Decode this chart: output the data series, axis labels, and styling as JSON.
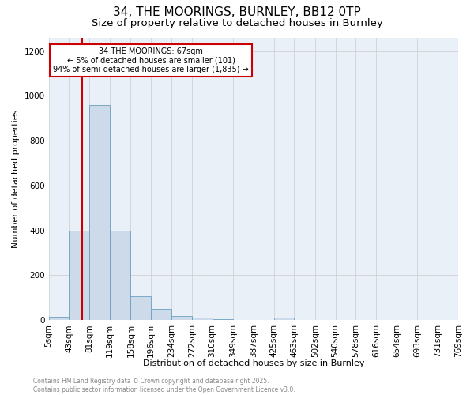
{
  "title1": "34, THE MOORINGS, BURNLEY, BB12 0TP",
  "title2": "Size of property relative to detached houses in Burnley",
  "xlabel": "Distribution of detached houses by size in Burnley",
  "ylabel": "Number of detached properties",
  "bin_edges": [
    5,
    43,
    81,
    119,
    158,
    196,
    234,
    272,
    310,
    349,
    387,
    425,
    463,
    502,
    540,
    578,
    616,
    654,
    693,
    731,
    769
  ],
  "bar_heights": [
    15,
    400,
    960,
    400,
    105,
    50,
    20,
    12,
    5,
    0,
    0,
    10,
    0,
    0,
    0,
    0,
    0,
    0,
    0,
    0
  ],
  "bar_color": "#ccdaea",
  "bar_edge_color": "#6a9fc0",
  "property_line_x": 67,
  "property_line_color": "#cc0000",
  "annotation_text": "34 THE MOORINGS: 67sqm\n← 5% of detached houses are smaller (101)\n94% of semi-detached houses are larger (1,835) →",
  "annotation_box_color": "#ffffff",
  "annotation_box_edge": "#cc0000",
  "ylim": [
    0,
    1260
  ],
  "yticks": [
    0,
    200,
    400,
    600,
    800,
    1000,
    1200
  ],
  "bg_color": "#eaf0f8",
  "grid_color": "#cccccc",
  "footer_text": "Contains HM Land Registry data © Crown copyright and database right 2025.\nContains public sector information licensed under the Open Government Licence v3.0.",
  "title1_fontsize": 11,
  "title2_fontsize": 9.5,
  "axis_label_fontsize": 8,
  "tick_fontsize": 7.5,
  "footer_fontsize": 5.5
}
